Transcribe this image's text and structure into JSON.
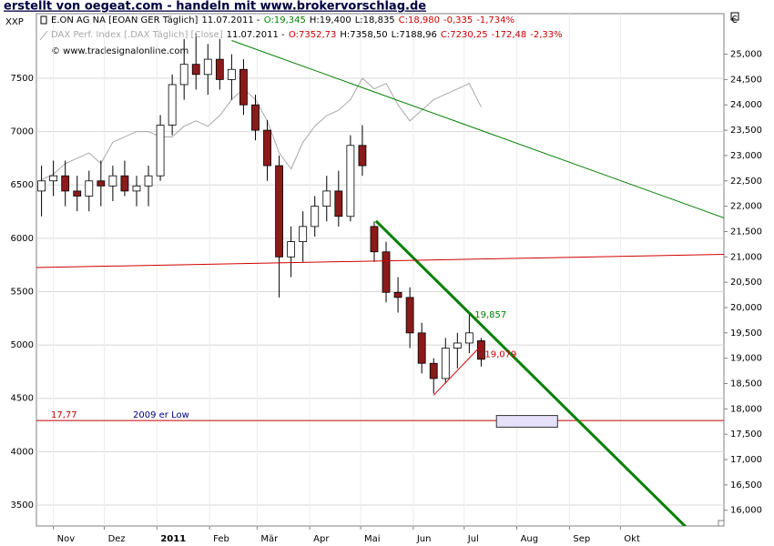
{
  "chart_data": {
    "type": "candlestick",
    "title": "erstellt von oegeat.com - handeln mit www.brokervorschlag.de",
    "copyright": "© www.tradesignalonline.com",
    "y_axis_label": "XXP",
    "y2_axis_label": "€",
    "x": [
      "2010-10-25",
      "2010-11-01",
      "2010-11-08",
      "2010-11-15",
      "2010-11-22",
      "2010-11-29",
      "2010-12-06",
      "2010-12-13",
      "2010-12-20",
      "2010-12-27",
      "2011-01-03",
      "2011-01-10",
      "2011-01-17",
      "2011-01-24",
      "2011-01-31",
      "2011-02-07",
      "2011-02-14",
      "2011-02-21",
      "2011-02-28",
      "2011-03-07",
      "2011-03-14",
      "2011-03-21",
      "2011-03-28",
      "2011-04-04",
      "2011-04-11",
      "2011-04-18",
      "2011-04-25",
      "2011-05-02",
      "2011-05-09",
      "2011-05-16",
      "2011-05-23",
      "2011-05-30",
      "2011-06-06",
      "2011-06-13",
      "2011-06-20",
      "2011-06-27",
      "2011-07-04",
      "2011-07-11"
    ],
    "xlim": [
      "2010-10-22",
      "2011-12-01"
    ],
    "xticks": [
      {
        "value": "2010-11-01",
        "label": "Nov"
      },
      {
        "value": "2010-12-01",
        "label": "Dez"
      },
      {
        "value": "2011-01-01",
        "label": "2011"
      },
      {
        "value": "2011-02-01",
        "label": "Feb"
      },
      {
        "value": "2011-03-01",
        "label": "Mär"
      },
      {
        "value": "2011-04-01",
        "label": "Apr"
      },
      {
        "value": "2011-05-01",
        "label": "Mai"
      },
      {
        "value": "2011-06-01",
        "label": "Jun"
      },
      {
        "value": "2011-07-01",
        "label": "Jul"
      },
      {
        "value": "2011-08-01",
        "label": "Aug"
      },
      {
        "value": "2011-09-01",
        "label": "Sep"
      },
      {
        "value": "2011-10-01",
        "label": "Okt"
      }
    ],
    "ylim": [
      3304,
      8105
    ],
    "yticks": [
      3500,
      4000,
      4500,
      5000,
      5500,
      6000,
      6500,
      7000,
      7500
    ],
    "y2lim": [
      15.69,
      25.8
    ],
    "y2ticks": [
      {
        "value": 16,
        "label": "16,000"
      },
      {
        "value": 16.5,
        "label": "16,500"
      },
      {
        "value": 17,
        "label": "17,000"
      },
      {
        "value": 17.5,
        "label": "17,500"
      },
      {
        "value": 18,
        "label": "18,000"
      },
      {
        "value": 18.5,
        "label": "18,500"
      },
      {
        "value": 19,
        "label": "19,000"
      },
      {
        "value": 19.5,
        "label": "19,500"
      },
      {
        "value": 20,
        "label": "20,000"
      },
      {
        "value": 20.5,
        "label": "20,500"
      },
      {
        "value": 21,
        "label": "21,000"
      },
      {
        "value": 21.5,
        "label": "21,500"
      },
      {
        "value": 22,
        "label": "22,000"
      },
      {
        "value": 22.5,
        "label": "22,500"
      },
      {
        "value": 23,
        "label": "23,000"
      },
      {
        "value": 23.5,
        "label": "23,500"
      },
      {
        "value": 24,
        "label": "24,000"
      },
      {
        "value": 24.5,
        "label": "24,500"
      },
      {
        "value": 25,
        "label": "25,000"
      }
    ],
    "grid": true,
    "series": [
      {
        "name": "E.ON AG NA [EOAN GER  Täglich]",
        "type": "candlestick",
        "axis": "y2",
        "up_color": "#ffffff",
        "down_color": "#8b1a1a",
        "legend": [
          {
            "text": "11.07.2011 -",
            "color": "#000000"
          },
          {
            "text": "O:19,345",
            "color": "#008000"
          },
          {
            "text": "H:19,400",
            "color": "#000000"
          },
          {
            "text": "L:18,835",
            "color": "#000000"
          },
          {
            "text": "C:18,980",
            "color": "#cc0000"
          },
          {
            "text": "-0,335",
            "color": "#cc0000"
          },
          {
            "text": "-1,734%",
            "color": "#cc0000"
          }
        ],
        "open": [
          22.3,
          22.5,
          22.6,
          22.3,
          22.2,
          22.5,
          22.4,
          22.6,
          22.3,
          22.4,
          22.6,
          23.6,
          24.4,
          24.8,
          24.6,
          24.9,
          24.5,
          24.7,
          24.0,
          23.5,
          22.8,
          21.0,
          21.3,
          21.6,
          22.0,
          22.3,
          21.8,
          23.2,
          21.6,
          21.1,
          20.3,
          20.2,
          19.5,
          18.9,
          18.6,
          19.2,
          19.3,
          19.345
        ],
        "high": [
          22.8,
          22.9,
          22.9,
          22.6,
          22.7,
          22.9,
          22.8,
          22.9,
          22.6,
          22.8,
          23.8,
          24.6,
          25.3,
          25.4,
          25.2,
          25.3,
          25.0,
          24.9,
          24.2,
          23.7,
          23.0,
          21.6,
          21.9,
          22.2,
          22.6,
          22.7,
          23.4,
          23.6,
          21.7,
          21.3,
          20.6,
          20.4,
          19.7,
          19.0,
          19.4,
          19.5,
          19.9,
          19.4
        ],
        "low": [
          21.8,
          22.2,
          22.0,
          21.9,
          21.9,
          22.0,
          22.1,
          22.2,
          22.0,
          22.0,
          22.5,
          23.4,
          24.1,
          24.3,
          24.2,
          24.3,
          24.1,
          23.8,
          23.3,
          22.5,
          20.2,
          20.6,
          20.9,
          21.4,
          21.7,
          21.6,
          21.7,
          22.6,
          20.9,
          20.1,
          19.9,
          19.2,
          18.7,
          18.3,
          18.5,
          18.8,
          19.1,
          18.835
        ],
        "close": [
          22.5,
          22.6,
          22.3,
          22.2,
          22.5,
          22.4,
          22.6,
          22.3,
          22.4,
          22.6,
          23.6,
          24.4,
          24.8,
          24.6,
          24.9,
          24.5,
          24.7,
          24.0,
          23.5,
          22.8,
          21.0,
          21.3,
          21.6,
          22.0,
          22.3,
          21.8,
          23.2,
          22.8,
          21.1,
          20.3,
          20.2,
          19.5,
          18.9,
          18.6,
          19.2,
          19.3,
          19.5,
          18.98
        ]
      },
      {
        "name": "DAX Perf. Index [.DAX  Täglich] [Close]",
        "type": "line",
        "axis": "y",
        "color": "#a8a8a8",
        "legend": [
          {
            "text": "11.07.2011 -",
            "color": "#000000"
          },
          {
            "text": "O:7352,73",
            "color": "#cc0000"
          },
          {
            "text": "H:7358,50",
            "color": "#000000"
          },
          {
            "text": "L:7188,96",
            "color": "#000000"
          },
          {
            "text": "C:7230,25",
            "color": "#cc0000"
          },
          {
            "text": "-172,48",
            "color": "#cc0000"
          },
          {
            "text": "-2,33%",
            "color": "#cc0000"
          }
        ],
        "values": [
          6550,
          6600,
          6700,
          6750,
          6800,
          6700,
          6900,
          6950,
          7000,
          7000,
          6950,
          6950,
          7050,
          7100,
          7050,
          7150,
          7300,
          7400,
          7300,
          7100,
          6800,
          6650,
          6900,
          7050,
          7150,
          7200,
          7300,
          7500,
          7400,
          7450,
          7250,
          7100,
          7200,
          7300,
          7350,
          7400,
          7450,
          7230.25
        ]
      }
    ],
    "trendlines": [
      {
        "color": "#008000",
        "width": 1,
        "x": [
          "2011-02-14",
          "2011-12-01"
        ],
        "y": [
          25.27,
          21.77
        ]
      },
      {
        "color": "#008000",
        "width": 3,
        "x": [
          "2011-05-10",
          "2011-12-01"
        ],
        "y": [
          21.71,
          14.93
        ]
      },
      {
        "color": "#d00000",
        "width": 1,
        "x": [
          "2010-10-22",
          "2011-12-01"
        ],
        "y": [
          20.79,
          21.05
        ]
      },
      {
        "color": "#d00000",
        "width": 1,
        "x": [
          "2011-06-13",
          "2011-07-11"
        ],
        "y": [
          18.27,
          19.25
        ]
      }
    ],
    "hline": {
      "y": 17.77,
      "label": "17,77",
      "note": "2009 er Low",
      "color": "#c00000",
      "note_color": "#000080"
    },
    "labels": [
      {
        "text": "19,857",
        "x": "2011-07-05",
        "y": 19.857,
        "color": "#008000"
      },
      {
        "text": "19,079",
        "x": "2011-07-11",
        "y": 19.079,
        "color": "#cc0000"
      }
    ],
    "box": {
      "x": [
        "2011-07-20",
        "2011-08-25"
      ],
      "y": [
        17.87,
        17.64
      ],
      "color": "#e6e0fa"
    }
  }
}
